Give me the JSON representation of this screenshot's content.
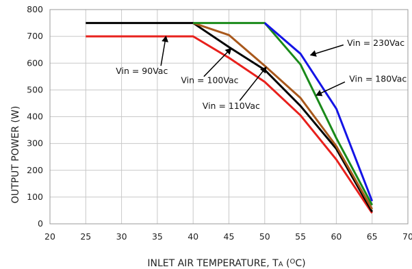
{
  "chart_data": {
    "type": "line",
    "xlabel_main": "INLET AIR TEMPERATURE, T",
    "xlabel_sub": "A",
    "xlabel_unit": " (",
    "xlabel_degree": "O",
    "xlabel_end": "C)",
    "ylabel": "OUTPUT POWER (W)",
    "xlim": [
      20,
      70
    ],
    "ylim": [
      0,
      800
    ],
    "xticks": [
      20,
      25,
      30,
      35,
      40,
      45,
      50,
      55,
      60,
      65,
      70
    ],
    "yticks": [
      0,
      100,
      200,
      300,
      400,
      500,
      600,
      700,
      800
    ],
    "grid": true,
    "series": [
      {
        "name": "Vin = 90Vac",
        "color": "#e8201c",
        "x": [
          25,
          40,
          45,
          50,
          55,
          60,
          65
        ],
        "y": [
          700,
          700,
          620,
          530,
          405,
          240,
          40
        ]
      },
      {
        "name": "Vin = 100Vac",
        "color": "#000000",
        "x": [
          25,
          40,
          45,
          50,
          55,
          60,
          65
        ],
        "y": [
          750,
          750,
          660,
          575,
          440,
          280,
          45
        ]
      },
      {
        "name": "Vin = 110Vac",
        "color": "#a8581c",
        "x": [
          40,
          45,
          50,
          55,
          60,
          65
        ],
        "y": [
          750,
          705,
          590,
          470,
          290,
          55
        ]
      },
      {
        "name": "Vin = 180Vac",
        "color": "#1a8a1a",
        "x": [
          40,
          50,
          55,
          60,
          65
        ],
        "y": [
          750,
          750,
          595,
          320,
          70
        ]
      },
      {
        "name": "Vin = 230Vac",
        "color": "#1414e6",
        "x": [
          50,
          55,
          60,
          65
        ],
        "y": [
          750,
          635,
          430,
          85
        ]
      }
    ],
    "annotations": [
      {
        "text": "Vin = 90Vac",
        "text_at": [
          29.2,
          560
        ],
        "arrow_from": [
          35.5,
          590
        ],
        "arrow_to": [
          36.2,
          700
        ]
      },
      {
        "text": "Vin = 100Vac",
        "text_at": [
          38.3,
          525
        ],
        "arrow_from": [
          41.5,
          550
        ],
        "arrow_to": [
          45.3,
          655
        ]
      },
      {
        "text": "Vin = 110Vac",
        "text_at": [
          41.3,
          430
        ],
        "arrow_from": [
          46.5,
          460
        ],
        "arrow_to": [
          50.2,
          585
        ]
      },
      {
        "text": "Vin = 230Vac",
        "text_at": [
          61.5,
          665
        ],
        "arrow_from": [
          61.0,
          668
        ],
        "arrow_to": [
          56.4,
          630
        ]
      },
      {
        "text": "Vin = 180Vac",
        "text_at": [
          61.8,
          530
        ],
        "arrow_from": [
          61.2,
          530
        ],
        "arrow_to": [
          57.2,
          480
        ]
      }
    ]
  }
}
